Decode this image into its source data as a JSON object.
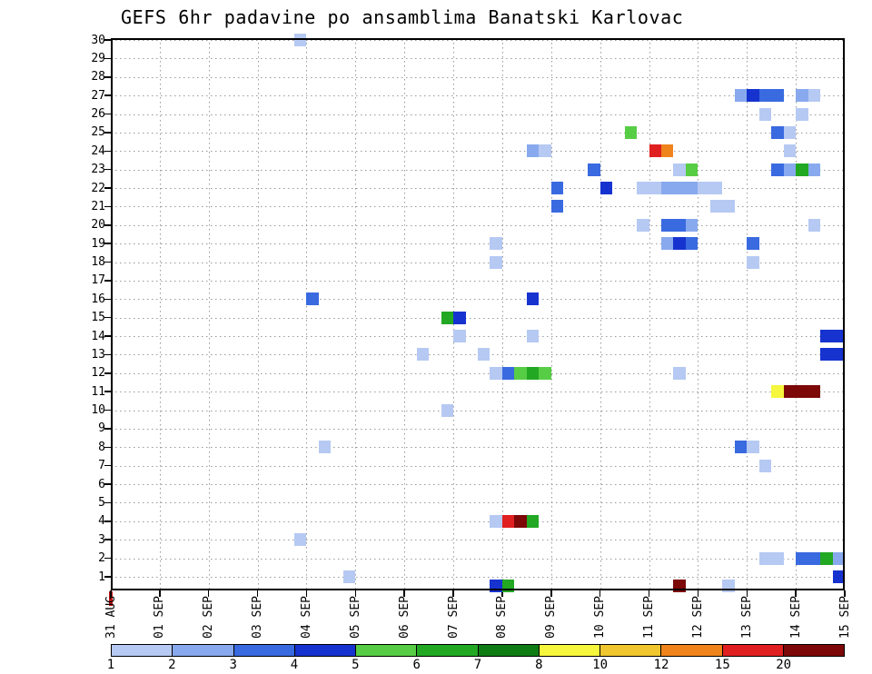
{
  "chart_data": {
    "type": "heatmap",
    "title": "GEFS 6hr padavine po ansamblima Banatski Karlovac",
    "subtitle": "",
    "xlabel": "",
    "ylabel": "",
    "grid": "dotted",
    "x_axis": {
      "tick_labels": [
        "31 AUG",
        "01 SEP",
        "02 SEP",
        "03 SEP",
        "04 SEP",
        "05 SEP",
        "06 SEP",
        "07 SEP",
        "08 SEP",
        "09 SEP",
        "10 SEP",
        "11 SEP",
        "12 SEP",
        "13 SEP",
        "14 SEP",
        "15 SEP"
      ],
      "periods_per_day": 4,
      "total_periods": 60
    },
    "y_axis": {
      "members": [
        1,
        2,
        3,
        4,
        5,
        6,
        7,
        8,
        9,
        10,
        11,
        12,
        13,
        14,
        15,
        16,
        17,
        18,
        19,
        20,
        21,
        22,
        23,
        24,
        25,
        26,
        27,
        28,
        29,
        30
      ],
      "ylim": [
        0,
        30
      ]
    },
    "legend": {
      "values": [
        "1",
        "2",
        "3",
        "4",
        "5",
        "6",
        "7",
        "8",
        "10",
        "12",
        "15",
        "20"
      ],
      "colors": [
        "#b5c9f2",
        "#88a9ee",
        "#3a6ae0",
        "#1733cf",
        "#57cc45",
        "#23a823",
        "#0e7c12",
        "#f6f63c",
        "#f0c62e",
        "#f0841c",
        "#e02020",
        "#7c0808"
      ],
      "position": "bottom"
    },
    "cells_format": "[member, six_hour_period_index_from_31AUG00, color_level_1_to_12]",
    "cells": [
      [
        30,
        15,
        1
      ],
      [
        27,
        51,
        2
      ],
      [
        27,
        52,
        4
      ],
      [
        27,
        53,
        3
      ],
      [
        27,
        54,
        3
      ],
      [
        27,
        56,
        2
      ],
      [
        27,
        57,
        1
      ],
      [
        26,
        53,
        1
      ],
      [
        26,
        56,
        1
      ],
      [
        25,
        42,
        5
      ],
      [
        25,
        54,
        3
      ],
      [
        25,
        55,
        1
      ],
      [
        24,
        34,
        2
      ],
      [
        24,
        35,
        1
      ],
      [
        24,
        44,
        11
      ],
      [
        24,
        45,
        10
      ],
      [
        24,
        55,
        1
      ],
      [
        23,
        39,
        3
      ],
      [
        23,
        46,
        1
      ],
      [
        23,
        47,
        5
      ],
      [
        23,
        54,
        3
      ],
      [
        23,
        55,
        2
      ],
      [
        23,
        56,
        6
      ],
      [
        23,
        57,
        2
      ],
      [
        22,
        36,
        3
      ],
      [
        22,
        40,
        4
      ],
      [
        22,
        43,
        1
      ],
      [
        22,
        44,
        1
      ],
      [
        22,
        45,
        2
      ],
      [
        22,
        46,
        2
      ],
      [
        22,
        47,
        2
      ],
      [
        22,
        48,
        1
      ],
      [
        22,
        49,
        1
      ],
      [
        21,
        36,
        3
      ],
      [
        21,
        49,
        1
      ],
      [
        21,
        50,
        1
      ],
      [
        20,
        43,
        1
      ],
      [
        20,
        45,
        3
      ],
      [
        20,
        46,
        3
      ],
      [
        20,
        47,
        2
      ],
      [
        20,
        57,
        1
      ],
      [
        19,
        31,
        1
      ],
      [
        19,
        45,
        2
      ],
      [
        19,
        46,
        4
      ],
      [
        19,
        47,
        3
      ],
      [
        19,
        52,
        3
      ],
      [
        18,
        31,
        1
      ],
      [
        18,
        52,
        1
      ],
      [
        16,
        16,
        3
      ],
      [
        16,
        34,
        4
      ],
      [
        15,
        27,
        6
      ],
      [
        15,
        28,
        4
      ],
      [
        14,
        28,
        1
      ],
      [
        14,
        34,
        1
      ],
      [
        14,
        58,
        4
      ],
      [
        14,
        59,
        4
      ],
      [
        13,
        25,
        1
      ],
      [
        13,
        30,
        1
      ],
      [
        13,
        58,
        4
      ],
      [
        13,
        59,
        4
      ],
      [
        12,
        31,
        1
      ],
      [
        12,
        32,
        3
      ],
      [
        12,
        33,
        5
      ],
      [
        12,
        34,
        6
      ],
      [
        12,
        35,
        5
      ],
      [
        12,
        46,
        1
      ],
      [
        11,
        54,
        8
      ],
      [
        11,
        55,
        12
      ],
      [
        11,
        56,
        12
      ],
      [
        11,
        57,
        12
      ],
      [
        10,
        27,
        1
      ],
      [
        8,
        17,
        1
      ],
      [
        8,
        51,
        3
      ],
      [
        8,
        52,
        1
      ],
      [
        7,
        53,
        1
      ],
      [
        4,
        31,
        1
      ],
      [
        4,
        32,
        11
      ],
      [
        4,
        33,
        12
      ],
      [
        4,
        34,
        6
      ],
      [
        3,
        15,
        1
      ],
      [
        2,
        53,
        1
      ],
      [
        2,
        54,
        1
      ],
      [
        2,
        56,
        3
      ],
      [
        2,
        57,
        3
      ],
      [
        2,
        58,
        6
      ],
      [
        2,
        59,
        2
      ],
      [
        1,
        19,
        1
      ],
      [
        1,
        59,
        4
      ],
      [
        0.5,
        31,
        4
      ],
      [
        0.5,
        32,
        6
      ],
      [
        0.5,
        46,
        12
      ],
      [
        0.5,
        50,
        1
      ]
    ],
    "origin_marker_color": "#cc1111"
  }
}
